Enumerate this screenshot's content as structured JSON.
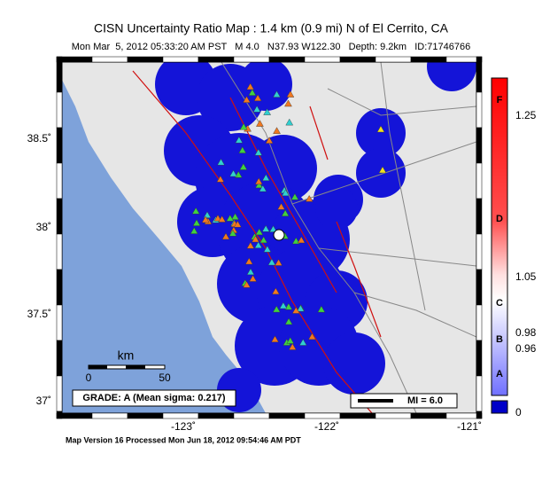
{
  "header": {
    "title": "CISN Uncertainty Ratio Map : 1.4 km (0.9 mi) N of El Cerrito, CA",
    "subtitle": "Mon Mar  5, 2012 05:33:20 AM PST   M 4.0   N37.93 W122.30   Depth: 9.2km   ID:71746766"
  },
  "map": {
    "lat_labels": [
      "38.5˚",
      "38˚",
      "37.5˚",
      "37˚"
    ],
    "lon_labels": [
      "-123˚",
      "-122˚",
      "-121˚"
    ],
    "scale": {
      "unit": "km",
      "labels": [
        "0",
        "50"
      ]
    },
    "grade": "GRADE: A (Mean sigma: 0.217)",
    "intensity": "MI = 6.0"
  },
  "colorbar": {
    "tick_labels": [
      "1.25",
      "1.05",
      "0.98",
      "0.96",
      "0"
    ],
    "grade_letters": [
      "F",
      "D",
      "C",
      "B",
      "A"
    ]
  },
  "footer": "Map Version 16 Processed Mon Jun 18, 2012 09:54:46 AM PDT"
}
